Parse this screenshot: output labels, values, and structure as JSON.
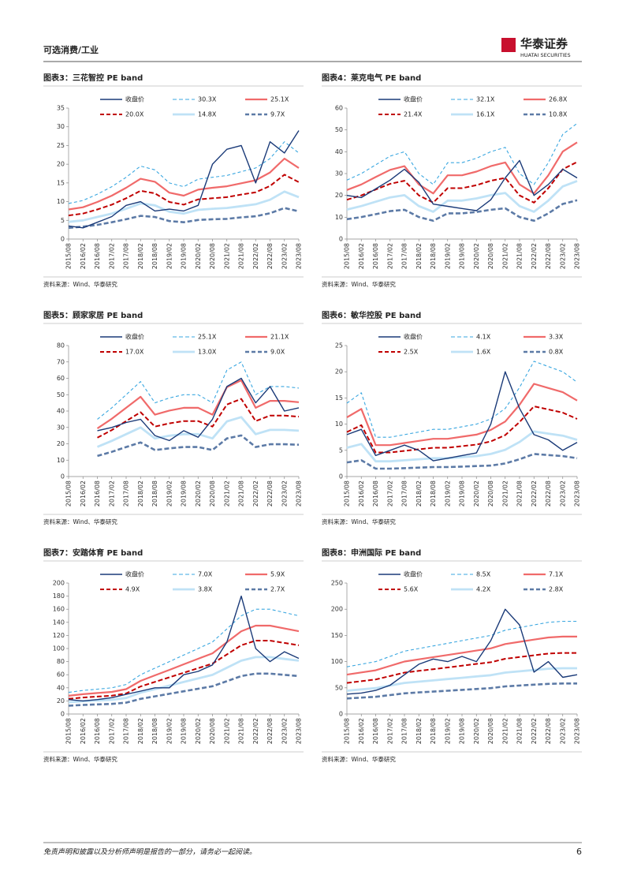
{
  "header": {
    "section": "可选消费/工业",
    "brand": "华泰证券",
    "brand_en": "HUATAI SECURITIES"
  },
  "footer": {
    "disclaimer": "免责声明和披露以及分析师声明是报告的一部分，请务必一起阅读。",
    "page": "6"
  },
  "chart_data": [
    {
      "type": "line",
      "title": "图表3：三花智控 PE band",
      "source": "资料来源：Wind、华泰研究",
      "categories": [
        "2015/08",
        "2016/02",
        "2016/08",
        "2017/02",
        "2017/08",
        "2018/02",
        "2018/08",
        "2019/02",
        "2019/08",
        "2020/02",
        "2020/08",
        "2021/02",
        "2021/08",
        "2022/02",
        "2022/08",
        "2023/02",
        "2023/08"
      ],
      "ylim": [
        0,
        35
      ],
      "yticks": [
        0,
        5,
        10,
        15,
        20,
        25,
        30,
        35
      ],
      "series": [
        {
          "name": "收盘价",
          "color": "#1a3a78",
          "line_style": "solid",
          "values": [
            3.5,
            3,
            4.5,
            6,
            9,
            10,
            7.5,
            8,
            7.5,
            9,
            20,
            24,
            25,
            15,
            26,
            23,
            29
          ]
        },
        {
          "name": "30.3X",
          "color": "#3aa7e0",
          "line_style": "dashed",
          "values": [
            9.5,
            10.3,
            12,
            14,
            16.5,
            19.5,
            18.5,
            15,
            14,
            16,
            16.5,
            17,
            18,
            19,
            21.5,
            26,
            23
          ]
        },
        {
          "name": "25.1X",
          "color": "#f06a6a",
          "line_style": "solid",
          "values": [
            7.9,
            8.5,
            9.9,
            11.6,
            13.7,
            16.1,
            15.3,
            12.4,
            11.6,
            13.2,
            13.7,
            14.1,
            14.9,
            15.7,
            17.8,
            21.5,
            19
          ]
        },
        {
          "name": "20.0X",
          "color": "#c00000",
          "line_style": "dashed",
          "values": [
            6.3,
            6.8,
            7.9,
            9.2,
            10.9,
            12.9,
            12.2,
            9.9,
            9.2,
            10.6,
            10.9,
            11.2,
            11.9,
            12.5,
            14.2,
            17.2,
            15.2
          ]
        },
        {
          "name": "14.8X",
          "color": "#bfe2f6",
          "line_style": "solid",
          "values": [
            4.6,
            5,
            5.9,
            6.8,
            8.1,
            9.5,
            9,
            7.3,
            6.8,
            7.8,
            8.1,
            8.3,
            8.8,
            9.3,
            10.5,
            12.7,
            11.2
          ]
        },
        {
          "name": "9.7X",
          "color": "#5c7aa6",
          "line_style": "dashed",
          "values": [
            3,
            3.3,
            3.8,
            4.5,
            5.3,
            6.2,
            5.9,
            4.8,
            4.5,
            5.1,
            5.3,
            5.4,
            5.8,
            6.1,
            6.9,
            8.3,
            7.4
          ]
        }
      ]
    },
    {
      "type": "line",
      "title": "图表4：莱克电气 PE band",
      "source": "资料来源：Wind、华泰研究",
      "categories": [
        "2015/08",
        "2016/02",
        "2016/08",
        "2017/02",
        "2017/08",
        "2018/02",
        "2018/08",
        "2019/02",
        "2019/08",
        "2020/02",
        "2020/08",
        "2021/02",
        "2021/08",
        "2022/02",
        "2022/08",
        "2023/02",
        "2023/08"
      ],
      "ylim": [
        0,
        60
      ],
      "yticks": [
        0,
        10,
        20,
        30,
        40,
        50,
        60
      ],
      "series": [
        {
          "name": "收盘价",
          "color": "#1a3a78",
          "line_style": "solid",
          "values": [
            20,
            19,
            23,
            27,
            32,
            26,
            16,
            15,
            14,
            13,
            18,
            28,
            36,
            20,
            25,
            32,
            28
          ]
        },
        {
          "name": "32.1X",
          "color": "#3aa7e0",
          "line_style": "dashed",
          "values": [
            27,
            30,
            34,
            38,
            40,
            30,
            25,
            35,
            35,
            37,
            40,
            42,
            30,
            25,
            35,
            48,
            53
          ]
        },
        {
          "name": "26.8X",
          "color": "#f06a6a",
          "line_style": "solid",
          "values": [
            22.5,
            25,
            28.4,
            31.7,
            33.4,
            25,
            20.9,
            29.2,
            29.2,
            30.9,
            33.4,
            35.1,
            25,
            20.9,
            29.2,
            40.1,
            44.3
          ]
        },
        {
          "name": "21.4X",
          "color": "#c00000",
          "line_style": "dashed",
          "values": [
            18,
            20,
            22.7,
            25.3,
            26.7,
            20,
            16.7,
            23.3,
            23.3,
            24.7,
            26.7,
            28,
            20,
            16.7,
            23.3,
            32,
            35.3
          ]
        },
        {
          "name": "16.1X",
          "color": "#bfe2f6",
          "line_style": "solid",
          "values": [
            13.5,
            15.1,
            17.1,
            19.1,
            20.1,
            15.1,
            12.5,
            17.6,
            17.6,
            18.6,
            20.1,
            21.1,
            15.1,
            12.5,
            17.6,
            24.1,
            26.6
          ]
        },
        {
          "name": "10.8X",
          "color": "#5c7aa6",
          "line_style": "dashed",
          "values": [
            9.1,
            10.1,
            11.4,
            12.8,
            13.4,
            10.1,
            8.4,
            11.8,
            11.8,
            12.4,
            13.4,
            14.1,
            10.1,
            8.4,
            11.8,
            16.1,
            17.8
          ]
        }
      ]
    },
    {
      "type": "line",
      "title": "图表5：顾家家居 PE band",
      "source": "资料来源：Wind、华泰研究",
      "categories": [
        "2015/08",
        "2016/02",
        "2016/08",
        "2017/02",
        "2017/08",
        "2018/02",
        "2018/08",
        "2019/02",
        "2019/08",
        "2020/02",
        "2020/08",
        "2021/02",
        "2021/08",
        "2022/02",
        "2022/08",
        "2023/02",
        "2023/08"
      ],
      "ylim": [
        0,
        80
      ],
      "yticks": [
        0,
        10,
        20,
        30,
        40,
        50,
        60,
        70,
        80
      ],
      "series": [
        {
          "name": "收盘价",
          "color": "#1a3a78",
          "line_style": "solid",
          "values": [
            null,
            null,
            28,
            30,
            33,
            35,
            25,
            22,
            28,
            24,
            35,
            55,
            60,
            45,
            55,
            40,
            42
          ]
        },
        {
          "name": "25.1X",
          "color": "#3aa7e0",
          "line_style": "dashed",
          "values": [
            null,
            null,
            35,
            42,
            50,
            58,
            45,
            48,
            50,
            50,
            45,
            65,
            70,
            50,
            55,
            55,
            54
          ]
        },
        {
          "name": "21.1X",
          "color": "#f06a6a",
          "line_style": "solid",
          "values": [
            null,
            null,
            29.4,
            35.3,
            42,
            48.7,
            37.8,
            40.3,
            42,
            42,
            37.8,
            54.6,
            58.8,
            42,
            46.2,
            46.2,
            45.4
          ]
        },
        {
          "name": "17.0X",
          "color": "#c00000",
          "line_style": "dashed",
          "values": [
            null,
            null,
            23.7,
            28.4,
            33.9,
            39.3,
            30.5,
            32.5,
            33.9,
            33.9,
            30.5,
            44,
            47.4,
            33.9,
            37.2,
            37.2,
            36.6
          ]
        },
        {
          "name": "13.0X",
          "color": "#bfe2f6",
          "line_style": "solid",
          "values": [
            null,
            null,
            18.1,
            21.8,
            25.9,
            30,
            23.3,
            24.9,
            25.9,
            25.9,
            23.3,
            33.7,
            36.3,
            25.9,
            28.5,
            28.5,
            28
          ]
        },
        {
          "name": "9.0X",
          "color": "#5c7aa6",
          "line_style": "dashed",
          "values": [
            null,
            null,
            12.6,
            15.1,
            18,
            20.8,
            16.2,
            17.2,
            18,
            18,
            16.2,
            23.3,
            25.1,
            18,
            19.7,
            19.7,
            19.4
          ]
        }
      ]
    },
    {
      "type": "line",
      "title": "图表6：敏华控股 PE band",
      "source": "资料来源：Wind、华泰研究",
      "categories": [
        "2015/08",
        "2016/02",
        "2016/08",
        "2017/02",
        "2017/08",
        "2018/02",
        "2018/08",
        "2019/02",
        "2019/08",
        "2020/02",
        "2020/08",
        "2021/02",
        "2021/08",
        "2022/02",
        "2022/08",
        "2023/02",
        "2023/08"
      ],
      "ylim": [
        0,
        25
      ],
      "yticks": [
        0,
        5,
        10,
        15,
        20,
        25
      ],
      "series": [
        {
          "name": "收盘价",
          "color": "#1a3a78",
          "line_style": "solid",
          "values": [
            8,
            9,
            4,
            5,
            6,
            5,
            3,
            3.5,
            4,
            4.5,
            10,
            20,
            13,
            8,
            7,
            5,
            6.5
          ]
        },
        {
          "name": "4.1X",
          "color": "#3aa7e0",
          "line_style": "dashed",
          "values": [
            14,
            16,
            7.5,
            7.5,
            8,
            8.5,
            9,
            9,
            9.5,
            10,
            11,
            13,
            17,
            22,
            21,
            20,
            18
          ]
        },
        {
          "name": "3.3X",
          "color": "#f06a6a",
          "line_style": "solid",
          "values": [
            11.3,
            12.9,
            6,
            6,
            6.4,
            6.8,
            7.2,
            7.2,
            7.6,
            8,
            8.9,
            10.5,
            13.7,
            17.7,
            16.9,
            16.1,
            14.5
          ]
        },
        {
          "name": "2.5X",
          "color": "#c00000",
          "line_style": "dashed",
          "values": [
            8.5,
            9.8,
            4.6,
            4.6,
            4.9,
            5.2,
            5.5,
            5.5,
            5.8,
            6.1,
            6.7,
            7.9,
            10.4,
            13.4,
            12.8,
            12.2,
            11
          ]
        },
        {
          "name": "1.6X",
          "color": "#bfe2f6",
          "line_style": "solid",
          "values": [
            5.5,
            6.2,
            2.9,
            2.9,
            3.1,
            3.3,
            3.5,
            3.5,
            3.7,
            3.9,
            4.3,
            5.1,
            6.6,
            8.6,
            8.2,
            7.8,
            7
          ]
        },
        {
          "name": "0.8X",
          "color": "#5c7aa6",
          "line_style": "dashed",
          "values": [
            2.7,
            3.1,
            1.5,
            1.5,
            1.6,
            1.7,
            1.8,
            1.8,
            1.9,
            2,
            2.1,
            2.5,
            3.3,
            4.3,
            4.1,
            3.9,
            3.5
          ]
        }
      ]
    },
    {
      "type": "line",
      "title": "图表7：安踏体育 PE band",
      "source": "资料来源：Wind、华泰研究",
      "categories": [
        "2015/08",
        "2016/02",
        "2016/08",
        "2017/02",
        "2017/08",
        "2018/02",
        "2018/08",
        "2019/02",
        "2019/08",
        "2020/02",
        "2020/08",
        "2021/02",
        "2021/08",
        "2022/02",
        "2022/08",
        "2023/02",
        "2023/08"
      ],
      "ylim": [
        0,
        200
      ],
      "yticks": [
        0,
        20,
        40,
        60,
        80,
        100,
        120,
        140,
        160,
        180,
        200
      ],
      "series": [
        {
          "name": "收盘价",
          "color": "#1a3a78",
          "line_style": "solid",
          "values": [
            22,
            20,
            22,
            25,
            30,
            35,
            40,
            40,
            60,
            65,
            75,
            110,
            180,
            100,
            80,
            95,
            85
          ]
        },
        {
          "name": "7.0X",
          "color": "#3aa7e0",
          "line_style": "dashed",
          "values": [
            33,
            36,
            38,
            40,
            45,
            60,
            70,
            80,
            90,
            100,
            110,
            130,
            150,
            160,
            160,
            155,
            150
          ]
        },
        {
          "name": "5.9X",
          "color": "#f06a6a",
          "line_style": "solid",
          "values": [
            27.8,
            30.3,
            32,
            33.7,
            37.9,
            50.6,
            59,
            67.4,
            75.9,
            84.3,
            92.7,
            109.6,
            126.4,
            134.9,
            134.9,
            130.6,
            126.4
          ]
        },
        {
          "name": "4.9X",
          "color": "#c00000",
          "line_style": "dashed",
          "values": [
            23.1,
            25.2,
            26.6,
            28,
            31.5,
            42,
            49,
            56,
            63,
            70,
            77,
            91,
            105,
            112,
            112,
            108.5,
            105
          ]
        },
        {
          "name": "3.8X",
          "color": "#bfe2f6",
          "line_style": "solid",
          "values": [
            17.9,
            19.5,
            20.6,
            21.7,
            24.4,
            32.6,
            38,
            43.4,
            48.9,
            54.3,
            59.7,
            70.6,
            81.4,
            86.9,
            86.9,
            84.1,
            81.4
          ]
        },
        {
          "name": "2.7X",
          "color": "#5c7aa6",
          "line_style": "dashed",
          "values": [
            12.7,
            13.9,
            14.7,
            15.4,
            17.4,
            23.1,
            27,
            30.9,
            34.7,
            38.6,
            42.4,
            50.1,
            57.9,
            61.7,
            61.7,
            59.8,
            57.9
          ]
        }
      ]
    },
    {
      "type": "line",
      "title": "图表8：申洲国际 PE band",
      "source": "资料来源：Wind、华泰研究",
      "categories": [
        "2015/08",
        "2016/02",
        "2016/08",
        "2017/02",
        "2017/08",
        "2018/02",
        "2018/08",
        "2019/02",
        "2019/08",
        "2020/02",
        "2020/08",
        "2021/02",
        "2021/08",
        "2022/02",
        "2022/08",
        "2023/02",
        "2023/08"
      ],
      "ylim": [
        0,
        250
      ],
      "yticks": [
        0,
        50,
        100,
        150,
        200,
        250
      ],
      "series": [
        {
          "name": "收盘价",
          "color": "#1a3a78",
          "line_style": "solid",
          "values": [
            38,
            40,
            45,
            55,
            75,
            95,
            105,
            100,
            110,
            100,
            140,
            200,
            170,
            80,
            100,
            70,
            75
          ]
        },
        {
          "name": "8.5X",
          "color": "#3aa7e0",
          "line_style": "dashed",
          "values": [
            90,
            95,
            100,
            110,
            120,
            125,
            130,
            135,
            140,
            145,
            150,
            160,
            165,
            170,
            175,
            177,
            177
          ]
        },
        {
          "name": "7.1X",
          "color": "#f06a6a",
          "line_style": "solid",
          "values": [
            75.2,
            79.3,
            83.5,
            91.9,
            100.2,
            104.4,
            108.6,
            112.7,
            116.9,
            121.1,
            125.3,
            133.6,
            137.8,
            142,
            146.1,
            147.8,
            147.8
          ]
        },
        {
          "name": "5.6X",
          "color": "#c00000",
          "line_style": "dashed",
          "values": [
            59.3,
            62.6,
            65.9,
            72.5,
            79.1,
            82.4,
            85.6,
            88.9,
            92.2,
            95.6,
            98.8,
            105.4,
            108.7,
            112,
            115.3,
            116.6,
            116.6
          ]
        },
        {
          "name": "4.2X",
          "color": "#bfe2f6",
          "line_style": "solid",
          "values": [
            44.5,
            47,
            49.4,
            54.4,
            59.3,
            61.8,
            64.2,
            66.7,
            69.2,
            71.7,
            74.1,
            79.1,
            81.5,
            84,
            86.5,
            87.4,
            87.4
          ]
        },
        {
          "name": "2.8X",
          "color": "#5c7aa6",
          "line_style": "dashed",
          "values": [
            29.6,
            31.3,
            32.9,
            36.2,
            39.5,
            41.2,
            42.8,
            44.5,
            46.1,
            47.8,
            49.4,
            52.7,
            54.4,
            56,
            57.6,
            58.3,
            58.3
          ]
        }
      ]
    }
  ]
}
